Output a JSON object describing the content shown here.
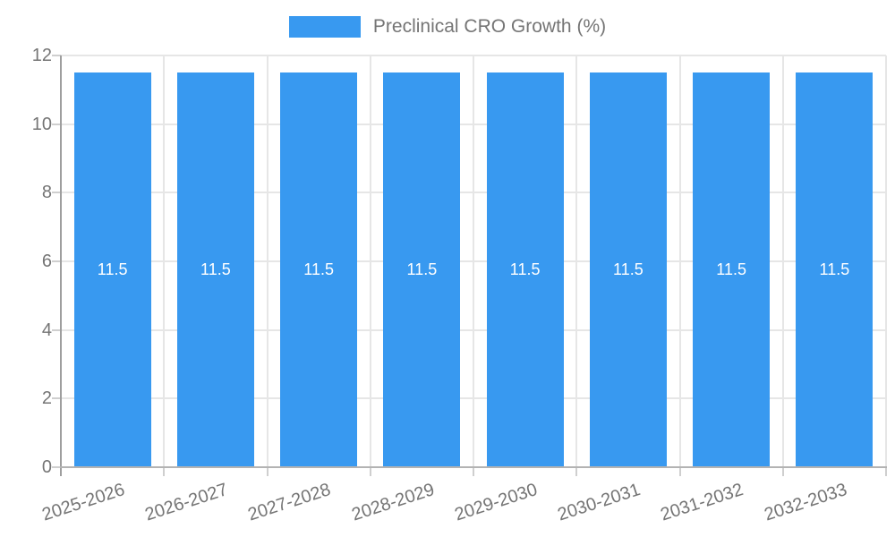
{
  "legend": {
    "label": "Preclinical CRO Growth (%)"
  },
  "colors": {
    "bar": "#3899f0",
    "grid": "#e6e6e6",
    "axis_x": "#b3b3b3",
    "axis_y": "#9e9e9e",
    "tick": "#cfcfcf",
    "text": "#757575",
    "value_label": "#ffffff",
    "background": "#ffffff"
  },
  "chart_data": {
    "type": "bar",
    "categories": [
      "2025-2026",
      "2026-2027",
      "2027-2028",
      "2028-2029",
      "2029-2030",
      "2030-2031",
      "2031-2032",
      "2032-2033"
    ],
    "values": [
      11.5,
      11.5,
      11.5,
      11.5,
      11.5,
      11.5,
      11.5,
      11.5
    ],
    "value_labels": [
      "11.5",
      "11.5",
      "11.5",
      "11.5",
      "11.5",
      "11.5",
      "11.5",
      "11.5"
    ],
    "series_name": "Preclinical CRO Growth (%)",
    "title": "",
    "xlabel": "",
    "ylabel": "",
    "ylim": [
      0,
      12
    ],
    "yticks": [
      0,
      2,
      4,
      6,
      8,
      10,
      12
    ],
    "grid": true,
    "legend_position": "top-center",
    "bar_label_position": "center"
  }
}
